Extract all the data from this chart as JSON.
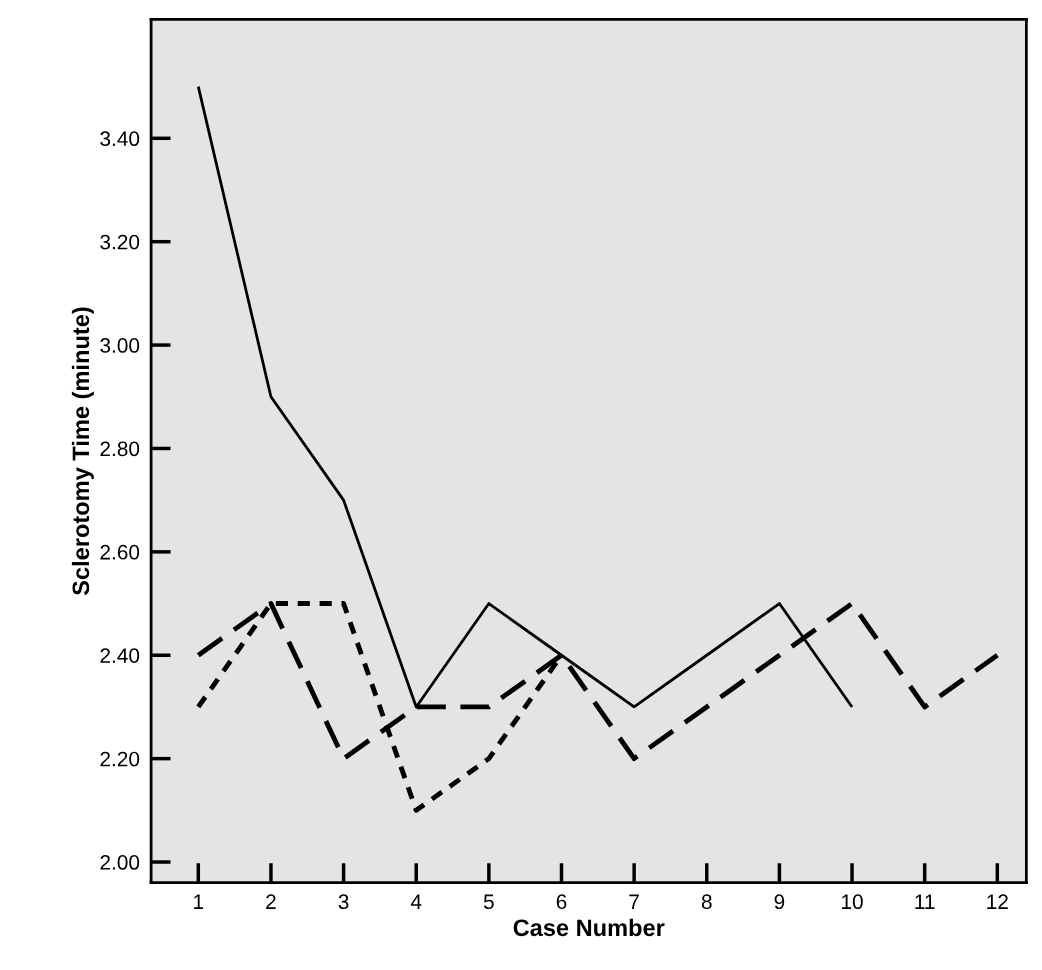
{
  "chart_data": {
    "type": "line",
    "xlabel": "Case Number",
    "ylabel": "Sclerotomy Time (minute)",
    "xlim": [
      0.35,
      12.4
    ],
    "xticks": [
      1,
      2,
      3,
      4,
      5,
      6,
      7,
      8,
      9,
      10,
      11,
      12
    ],
    "ylim": [
      1.96,
      3.63
    ],
    "yticks": [
      {
        "value": 2.0,
        "label": "2.00"
      },
      {
        "value": 2.2,
        "label": "2.20"
      },
      {
        "value": 2.4,
        "label": "2.40"
      },
      {
        "value": 2.6,
        "label": "2.60"
      },
      {
        "value": 2.8,
        "label": "2.80"
      },
      {
        "value": 3.0,
        "label": "3.00"
      },
      {
        "value": 3.2,
        "label": "3.20"
      },
      {
        "value": 3.4,
        "label": "3.40"
      }
    ],
    "grid": false,
    "marker": "none",
    "series": [
      {
        "color": "#000000",
        "line_style": "solid",
        "x": [
          1,
          2,
          3,
          4,
          5,
          6,
          7,
          8,
          9,
          10
        ],
        "values": [
          3.5,
          2.9,
          2.7,
          2.3,
          2.5,
          2.4,
          2.3,
          2.4,
          2.5,
          2.3
        ]
      },
      {
        "color": "#000000",
        "line_style": "dashed",
        "x": [
          1,
          2,
          3,
          4,
          5,
          6,
          7,
          8,
          9,
          10,
          11,
          12
        ],
        "values": [
          2.4,
          2.5,
          2.2,
          2.3,
          2.3,
          2.4,
          2.2,
          2.3,
          2.4,
          2.5,
          2.3,
          2.4
        ]
      },
      {
        "color": "#000000",
        "line_style": "dotted",
        "x": [
          1,
          2,
          3,
          4,
          5,
          6
        ],
        "values": [
          2.3,
          2.5,
          2.5,
          2.1,
          2.2,
          2.4
        ]
      }
    ]
  }
}
